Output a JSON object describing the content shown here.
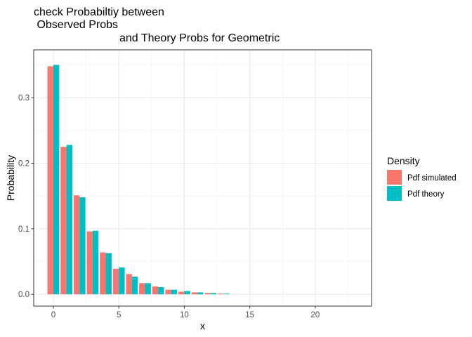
{
  "chart_data": {
    "type": "bar",
    "title_lines": [
      "check Probabiltiy between",
      " Observed Probs",
      "and Theory Probs for Geometric"
    ],
    "xlabel": "x",
    "ylabel": "Probability",
    "xlim": [
      -1.5,
      24.3
    ],
    "ylim": [
      -0.018,
      0.373
    ],
    "x_ticks": [
      0,
      5,
      10,
      15,
      20
    ],
    "x_tick_labels": [
      "0",
      "5",
      "10",
      "15",
      "20"
    ],
    "y_ticks": [
      0,
      0.1,
      0.2,
      0.3
    ],
    "y_tick_labels": [
      "0.0",
      "0.1",
      "0.2",
      "0.3"
    ],
    "x": [
      0,
      1,
      2,
      3,
      4,
      5,
      6,
      7,
      8,
      9,
      10,
      11,
      12,
      13
    ],
    "series": [
      {
        "name": "Pdf simulated",
        "color": "#F8766D",
        "values": [
          0.348,
          0.225,
          0.151,
          0.096,
          0.064,
          0.039,
          0.031,
          0.017,
          0.012,
          0.007,
          0.004,
          0.003,
          0.002,
          0.001
        ]
      },
      {
        "name": "Pdf theory",
        "color": "#00BFC4",
        "values": [
          0.35,
          0.228,
          0.148,
          0.097,
          0.063,
          0.041,
          0.027,
          0.017,
          0.011,
          0.007,
          0.005,
          0.003,
          0.002,
          0.001
        ]
      }
    ],
    "legend": {
      "title": "Density",
      "position": "right"
    },
    "grid": true,
    "panel_border": true
  }
}
